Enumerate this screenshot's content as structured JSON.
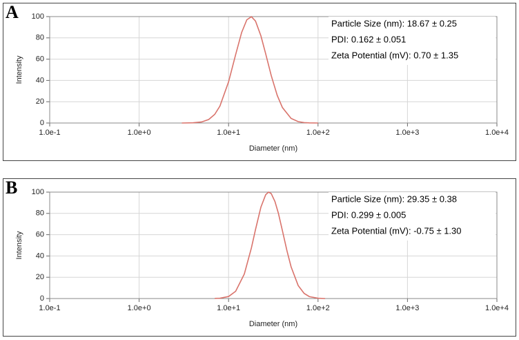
{
  "chart_data": [
    {
      "type": "line",
      "panel_label": "A",
      "xlabel": "Diameter (nm)",
      "ylabel": "Intensity",
      "annotations": [
        "Particle Size (nm): 18.67 ± 0.25",
        "PDI: 0.162 ± 0.051",
        "Zeta Potential (mV): 0.70 ± 1.35"
      ],
      "xscale": "log",
      "grid": true,
      "color": "#d9736b",
      "xlim": [
        0.1,
        10000
      ],
      "ylim": [
        0,
        100
      ],
      "xticks": [
        {
          "value": 0.1,
          "label": "1.0e-1"
        },
        {
          "value": 1,
          "label": "1.0e+0"
        },
        {
          "value": 10,
          "label": "1.0e+1"
        },
        {
          "value": 100,
          "label": "1.0e+2"
        },
        {
          "value": 1000,
          "label": "1.0e+3"
        },
        {
          "value": 10000,
          "label": "1.0e+4"
        }
      ],
      "yticks": [
        0,
        20,
        40,
        60,
        80,
        100
      ],
      "x": [
        3,
        4,
        5,
        6,
        7,
        8,
        10,
        12,
        14,
        16,
        18,
        20,
        23,
        26,
        30,
        35,
        40,
        50,
        60,
        70,
        80,
        100
      ],
      "values": [
        0.0,
        0.2,
        1.0,
        3.3,
        8.1,
        15.9,
        38.7,
        64.3,
        85.1,
        97.0,
        99.9,
        95.8,
        81.8,
        65.0,
        44.5,
        25.9,
        14.5,
        4.3,
        1.3,
        0.4,
        0.1,
        0.0
      ]
    },
    {
      "type": "line",
      "panel_label": "B",
      "xlabel": "Diameter (nm)",
      "ylabel": "Intensity",
      "annotations": [
        "Particle Size (nm): 29.35 ± 0.38",
        "PDI: 0.299 ± 0.005",
        "Zeta Potential (mV): -0.75 ± 1.30"
      ],
      "xscale": "log",
      "grid": true,
      "color": "#d9736b",
      "xlim": [
        0.1,
        10000
      ],
      "ylim": [
        0,
        100
      ],
      "xticks": [
        {
          "value": 0.1,
          "label": "1.0e-1"
        },
        {
          "value": 1,
          "label": "1.0e+0"
        },
        {
          "value": 10,
          "label": "1.0e+1"
        },
        {
          "value": 100,
          "label": "1.0e+2"
        },
        {
          "value": 1000,
          "label": "1.0e+3"
        },
        {
          "value": 10000,
          "label": "1.0e+4"
        }
      ],
      "yticks": [
        0,
        20,
        40,
        60,
        80,
        100
      ],
      "x": [
        7,
        8,
        10,
        12,
        15,
        18,
        20,
        23,
        26,
        28,
        30,
        33,
        36,
        40,
        45,
        50,
        60,
        70,
        80,
        100,
        120
      ],
      "values": [
        0.1,
        0.3,
        1.9,
        6.8,
        23.1,
        47.6,
        64.8,
        86.0,
        97.6,
        100.0,
        98.6,
        91.1,
        80.3,
        63.7,
        44.7,
        29.8,
        12.2,
        4.8,
        1.8,
        0.3,
        0.0
      ]
    }
  ]
}
